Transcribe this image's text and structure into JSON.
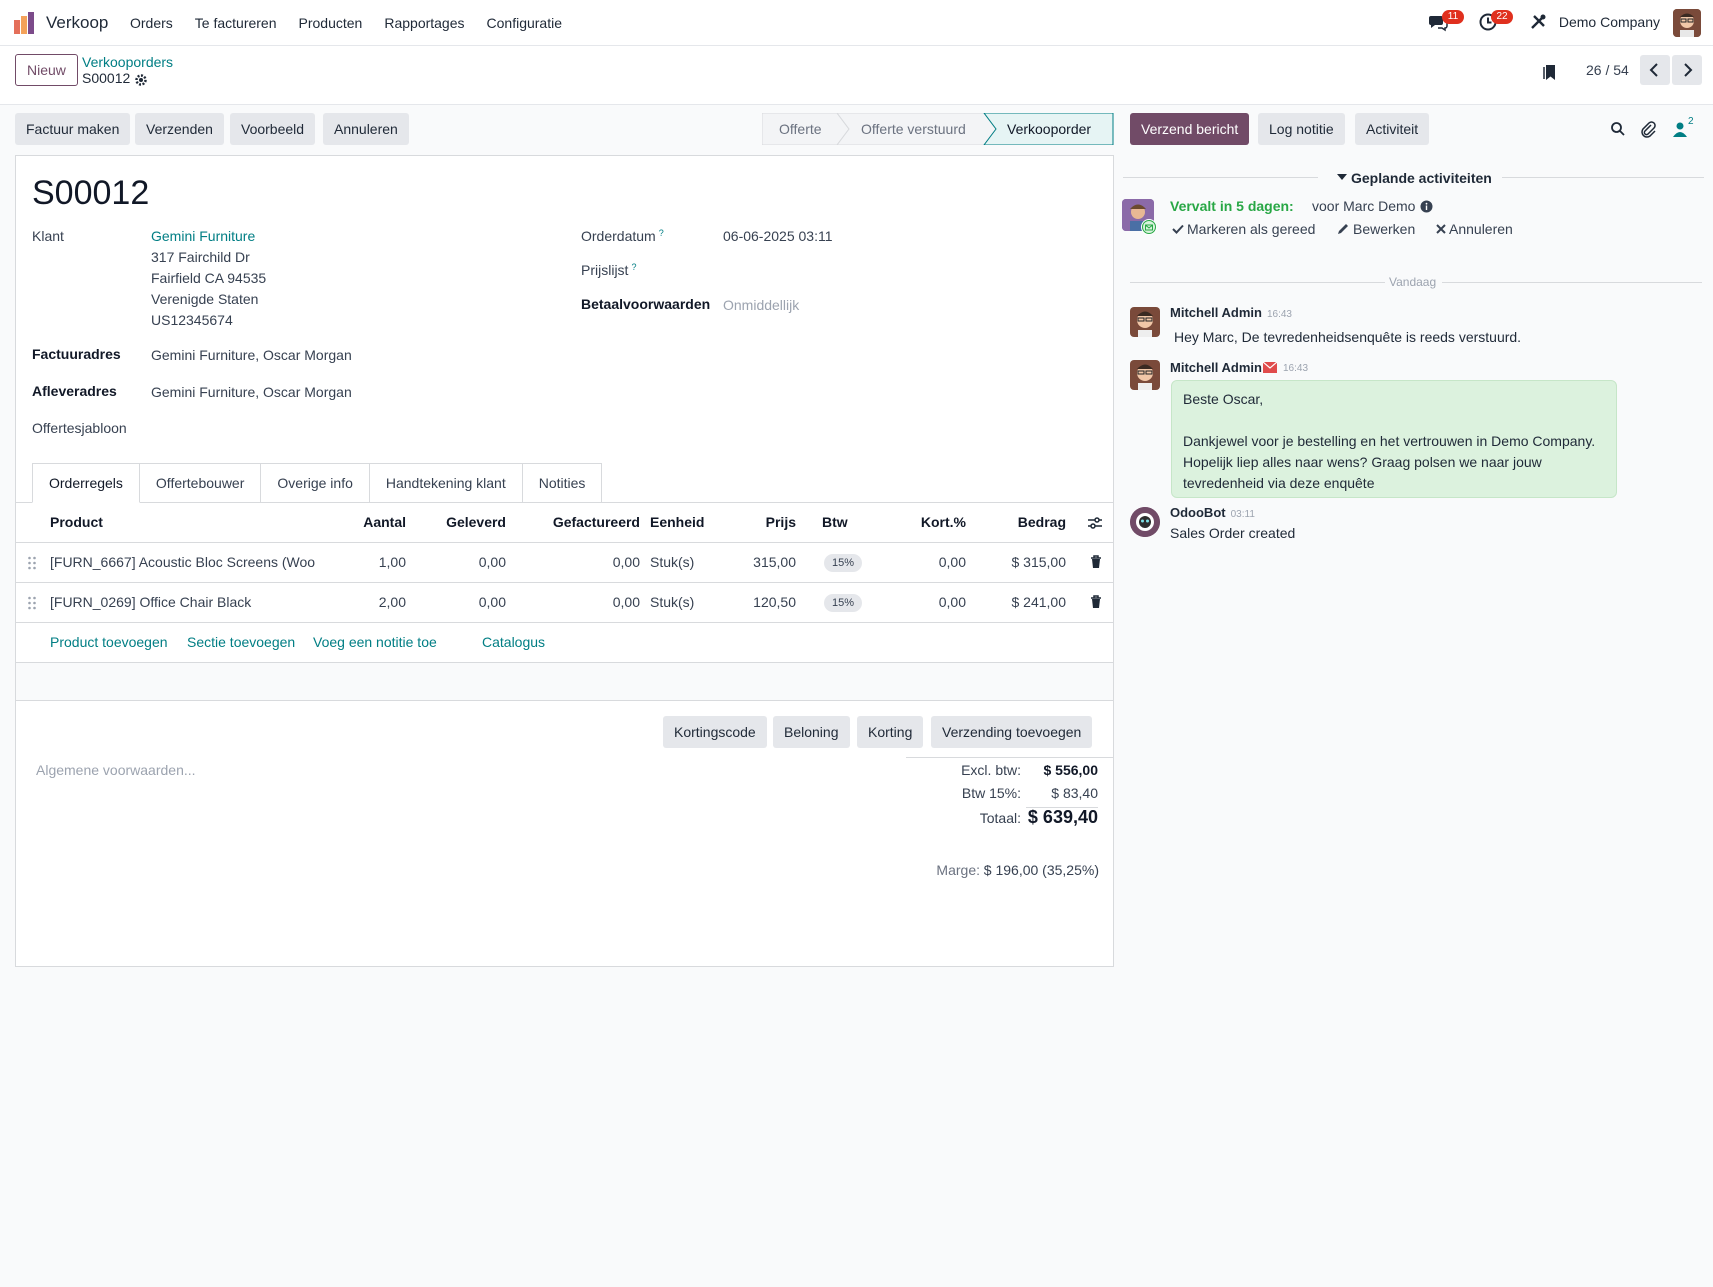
{
  "navbar": {
    "app_name": "Verkoop",
    "menu": [
      "Orders",
      "Te factureren",
      "Producten",
      "Rapportages",
      "Configuratie"
    ],
    "messages_badge": "11",
    "activities_badge": "22",
    "company": "Demo Company"
  },
  "control": {
    "new_button": "Nieuw",
    "breadcrumb_parent": "Verkooporders",
    "breadcrumb_current": "S00012",
    "pager": "26 / 54"
  },
  "actions": {
    "create_invoice": "Factuur maken",
    "send": "Verzenden",
    "preview": "Voorbeeld",
    "cancel": "Annuleren"
  },
  "stages": [
    "Offerte",
    "Offerte verstuurd",
    "Verkooporder"
  ],
  "active_stage": "Verkooporder",
  "chatter_buttons": {
    "send_message": "Verzend bericht",
    "log_note": "Log notitie",
    "activity": "Activiteit",
    "followers_count": "2"
  },
  "form": {
    "order_name": "S00012",
    "customer_label": "Klant",
    "customer_name": "Gemini Furniture",
    "customer_address": [
      "317 Fairchild Dr",
      "Fairfield CA 94535",
      "Verenigde Staten",
      "US12345674"
    ],
    "invoice_address_label": "Factuuradres",
    "invoice_address": "Gemini Furniture, Oscar Morgan",
    "delivery_address_label": "Afleveradres",
    "delivery_address": "Gemini Furniture, Oscar Morgan",
    "quote_template_label": "Offertesjabloon",
    "order_date_label": "Orderdatum",
    "order_date": "06-06-2025 03:11",
    "pricelist_label": "Prijslijst",
    "payment_terms_label": "Betaalvoorwaarden",
    "payment_terms": "Onmiddellijk",
    "help_mark": "?"
  },
  "tabs": [
    "Orderregels",
    "Offertebouwer",
    "Overige info",
    "Handtekening klant",
    "Notities"
  ],
  "table": {
    "headers": {
      "product": "Product",
      "qty": "Aantal",
      "delivered": "Geleverd",
      "invoiced": "Gefactureerd",
      "uom": "Eenheid",
      "price": "Prijs",
      "tax": "Btw",
      "discount": "Kort.%",
      "amount": "Bedrag"
    },
    "rows": [
      {
        "product": "[FURN_6667] Acoustic Bloc Screens (Woo",
        "qty": "1,00",
        "delivered": "0,00",
        "invoiced": "0,00",
        "uom": "Stuk(s)",
        "price": "315,00",
        "tax": "15%",
        "discount": "0,00",
        "amount": "$ 315,00"
      },
      {
        "product": "[FURN_0269] Office Chair Black",
        "qty": "2,00",
        "delivered": "0,00",
        "invoiced": "0,00",
        "uom": "Stuk(s)",
        "price": "120,50",
        "tax": "15%",
        "discount": "0,00",
        "amount": "$ 241,00"
      }
    ],
    "add_links": {
      "add_product": "Product toevoegen",
      "add_section": "Sectie toevoegen",
      "add_note": "Voeg een notitie toe",
      "catalog": "Catalogus"
    }
  },
  "promo_buttons": {
    "coupon": "Kortingscode",
    "reward": "Beloning",
    "discount": "Korting",
    "shipping": "Verzending toevoegen"
  },
  "terms_placeholder": "Algemene voorwaarden...",
  "totals": {
    "untaxed_label": "Excl. btw:",
    "untaxed": "$ 556,00",
    "tax_label": "Btw 15%:",
    "tax": "$ 83,40",
    "total_label": "Totaal:",
    "total": "$ 639,40",
    "margin_label": "Marge:",
    "margin": "$ 196,00 (35,25%)"
  },
  "chatter": {
    "planned_title": "Geplande activiteiten",
    "activity_due": "Vervalt in 5 dagen:",
    "activity_for": "voor Marc Demo",
    "mark_done": "Markeren als gereed",
    "edit": "Bewerken",
    "cancel": "Annuleren",
    "today": "Vandaag",
    "messages": [
      {
        "author": "Mitchell Admin",
        "time": "16:43",
        "body": "Hey Marc, De tevredenheidsenquête is reeds verstuurd."
      },
      {
        "author": "Mitchell Admin",
        "time": "16:43",
        "lines": [
          "Beste Oscar,",
          "",
          "Dankjewel voor je bestelling en het vertrouwen in Demo Company.",
          "Hopelijk liep alles naar wens? Graag polsen we naar jouw",
          "tevredenheid via deze enquête"
        ]
      },
      {
        "author": "OdooBot",
        "time": "03:11",
        "body": "Sales Order created"
      }
    ]
  },
  "colors": {
    "brand": "#714b67",
    "link": "#017e84",
    "success": "#28a745",
    "badge": "#e0301e",
    "email_bubble": "#dcf2de"
  },
  "icons": [
    "app-logo-icon",
    "chat-icon",
    "clock-icon",
    "tools-icon",
    "gear-icon",
    "bookmark-icon",
    "chevron-left-icon",
    "chevron-right-icon",
    "search-icon",
    "paperclip-icon",
    "follower-icon",
    "grip-icon",
    "trash-icon",
    "settings-toggle-icon",
    "check-icon",
    "pencil-icon",
    "times-icon",
    "info-icon",
    "envelope-icon",
    "caret-down-icon"
  ]
}
